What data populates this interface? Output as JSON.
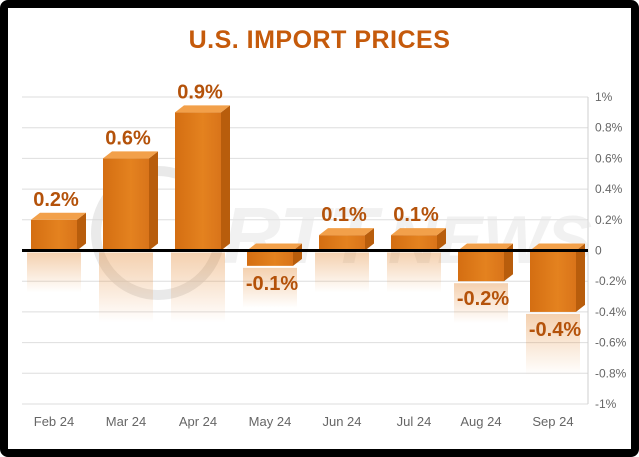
{
  "colors": {
    "bar_front": "#e07a1a",
    "bar_side": "#b85d0c",
    "bar_top": "#f2a04a",
    "title": "#c55a0b",
    "label": "#b4520a",
    "axis": "#000000",
    "grid": "#dedede",
    "tick": "#666666",
    "watermark": "#d8d8d8"
  },
  "chart_data": {
    "type": "bar",
    "title": "U.S. IMPORT PRICES",
    "xlabel": "",
    "ylabel": "",
    "categories": [
      "Feb 24",
      "Mar 24",
      "Apr 24",
      "May 24",
      "Jun 24",
      "Jul 24",
      "Aug 24",
      "Sep 24"
    ],
    "values": [
      0.2,
      0.6,
      0.9,
      -0.1,
      0.1,
      0.1,
      -0.2,
      -0.4
    ],
    "data_labels": [
      "0.2%",
      "0.6%",
      "0.9%",
      "-0.1%",
      "0.1%",
      "0.1%",
      "-0.2%",
      "-0.4%"
    ],
    "ylim": [
      -1,
      1
    ],
    "yticks": [
      1,
      0.8,
      0.6,
      0.4,
      0.2,
      0,
      -0.2,
      -0.4,
      -0.6,
      -0.8,
      -1
    ],
    "ytick_labels": [
      "1%",
      "0.8%",
      "0.6%",
      "0.4%",
      "0.2%",
      "0",
      "-0.2%",
      "-0.4%",
      "-0.6%",
      "-0.8%",
      "-1%"
    ],
    "y_axis_side": "right",
    "grid": true,
    "style": "3d-bars-with-reflection"
  }
}
